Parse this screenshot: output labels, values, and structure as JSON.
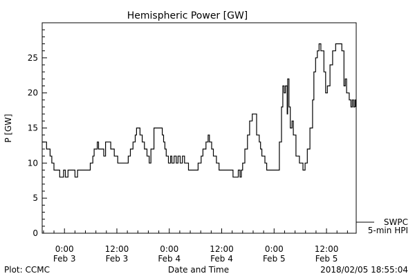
{
  "chart_data": {
    "type": "line",
    "title": "Hemispheric Power [GW]",
    "xlabel": "Date and Time",
    "ylabel": "P [GW]",
    "x_units": "hours since 2018-02-03 00:00",
    "xlim": [
      -5.1,
      66.8
    ],
    "ylim": [
      0,
      30
    ],
    "yticks": [
      0,
      5,
      10,
      15,
      20,
      25
    ],
    "xticks": [
      {
        "hour": 0,
        "time": "0:00",
        "date": "Feb 3"
      },
      {
        "hour": 12,
        "time": "12:00",
        "date": "Feb 3"
      },
      {
        "hour": 24,
        "time": "0:00",
        "date": "Feb 4"
      },
      {
        "hour": 36,
        "time": "12:00",
        "date": "Feb 4"
      },
      {
        "hour": 48,
        "time": "0:00",
        "date": "Feb 5"
      },
      {
        "hour": 60,
        "time": "12:00",
        "date": "Feb 5"
      }
    ],
    "legend": {
      "position": "right-bottom",
      "source": "SWPC",
      "label": "5-min HPI"
    },
    "grid": false,
    "series": [
      {
        "name": "SWPC 5-min HPI",
        "x": [
          -5.1,
          -4.3,
          -4.1,
          -3.7,
          -3.3,
          -2.9,
          -2.4,
          -1.4,
          -1.1,
          -0.5,
          -0.2,
          0.2,
          0.5,
          0.8,
          2.1,
          2.4,
          3.0,
          5.6,
          5.9,
          6.5,
          6.8,
          7.5,
          7.8,
          8.7,
          9.0,
          9.4,
          10.3,
          10.6,
          11.4,
          12.2,
          14.1,
          14.6,
          15.1,
          15.7,
          16.2,
          16.5,
          17.0,
          17.3,
          17.8,
          18.3,
          18.9,
          19.4,
          19.8,
          20.5,
          22.1,
          22.4,
          22.7,
          23.0,
          23.3,
          23.8,
          24.3,
          24.6,
          25.1,
          25.6,
          26.0,
          26.5,
          27.0,
          27.5,
          28.4,
          30.3,
          30.6,
          31.3,
          31.7,
          32.4,
          32.9,
          33.2,
          33.7,
          34.1,
          34.8,
          35.4,
          38.3,
          38.6,
          39.5,
          39.8,
          40.2,
          40.5,
          40.8,
          41.3,
          41.9,
          42.4,
          43.0,
          43.5,
          44.0,
          44.6,
          44.9,
          45.2,
          45.9,
          46.3,
          48.7,
          49.2,
          49.7,
          50.0,
          50.3,
          50.6,
          51.0,
          51.1,
          51.4,
          51.7,
          52.1,
          52.4,
          53.0,
          53.8,
          54.6,
          55.1,
          55.6,
          56.2,
          56.8,
          57.1,
          57.5,
          57.9,
          58.3,
          58.7,
          59.4,
          59.8,
          60.2,
          60.8,
          61.4,
          62.1,
          63.0,
          63.5,
          64.0,
          64.3,
          64.6,
          65.2,
          65.6,
          65.9,
          66.2,
          66.5,
          66.7
        ],
        "y": [
          13,
          13,
          12,
          12,
          11,
          10,
          9,
          9,
          8,
          8,
          9,
          8,
          8,
          9,
          9,
          8,
          9,
          9,
          10,
          11,
          12,
          13,
          12,
          12,
          11,
          13,
          13,
          12,
          11,
          10,
          10,
          11,
          12,
          13,
          14,
          15,
          15,
          14,
          13,
          12,
          11,
          10,
          12,
          15,
          15,
          14,
          13,
          12,
          11,
          10,
          11,
          10,
          11,
          10,
          11,
          10,
          11,
          10,
          9,
          9,
          10,
          11,
          12,
          13,
          14,
          13,
          12,
          11,
          10,
          9,
          9,
          8,
          8,
          9,
          8,
          9,
          10,
          12,
          14,
          16,
          17,
          17,
          14,
          13,
          12,
          11,
          10,
          9,
          9,
          13,
          18,
          21,
          20,
          21,
          17,
          22,
          18,
          15,
          16,
          14,
          11,
          10,
          9,
          10,
          12,
          15,
          19,
          23,
          25,
          26,
          27,
          26,
          23,
          20,
          21,
          24,
          26,
          27,
          27,
          26,
          21,
          22,
          20,
          19,
          18,
          19,
          18,
          19,
          18
        ]
      }
    ]
  },
  "footer": {
    "left": "Plot: CCMC",
    "right": "2018/02/05 18:55:04"
  }
}
